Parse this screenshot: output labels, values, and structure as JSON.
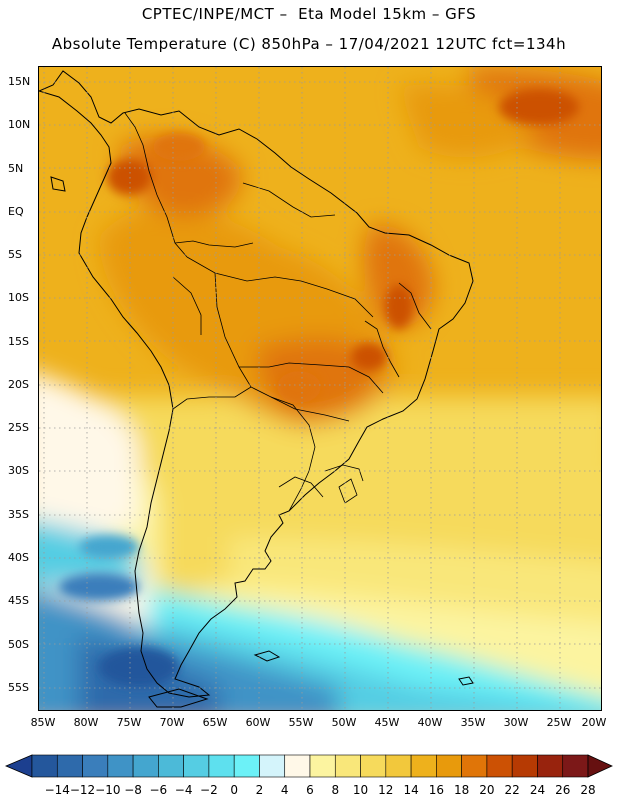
{
  "header": {
    "line1": "CPTEC/INPE/MCT –  Eta Model 15km – GFS",
    "line2": "Absolute Temperature (C) 850hPa – 17/04/2021 12UTC fct=134h"
  },
  "map": {
    "variable": "Absolute Temperature (C) 850hPa",
    "lat_labels": [
      "15N",
      "10N",
      "5N",
      "EQ",
      "5S",
      "10S",
      "15S",
      "20S",
      "25S",
      "30S",
      "35S",
      "40S",
      "45S",
      "50S",
      "55S"
    ],
    "lon_labels": [
      "85W",
      "80W",
      "75W",
      "70W",
      "65W",
      "60W",
      "55W",
      "50W",
      "45W",
      "40W",
      "35W",
      "30W",
      "25W",
      "20W"
    ],
    "gridlines": "dotted"
  },
  "legend": {
    "labels": [
      "-14",
      "-12",
      "-10",
      "-8",
      "-6",
      "-4",
      "-2",
      "0",
      "2",
      "4",
      "6",
      "8",
      "10",
      "12",
      "14",
      "16",
      "18",
      "20",
      "22",
      "24",
      "26",
      "28"
    ],
    "colors": [
      "#1c3f8f",
      "#24579c",
      "#2e6aab",
      "#3a7ebb",
      "#3f93c6",
      "#44a6cf",
      "#4cbad8",
      "#55cde3",
      "#5ee0ee",
      "#6cf1f7",
      "#d4f4fb",
      "#fff8e8",
      "#fcf4a0",
      "#f9e77a",
      "#f6da5c",
      "#f2c83c",
      "#eeb11c",
      "#e89a0c",
      "#e07508",
      "#cc5104",
      "#b63a03",
      "#98230d",
      "#7c1818",
      "#661010"
    ]
  }
}
